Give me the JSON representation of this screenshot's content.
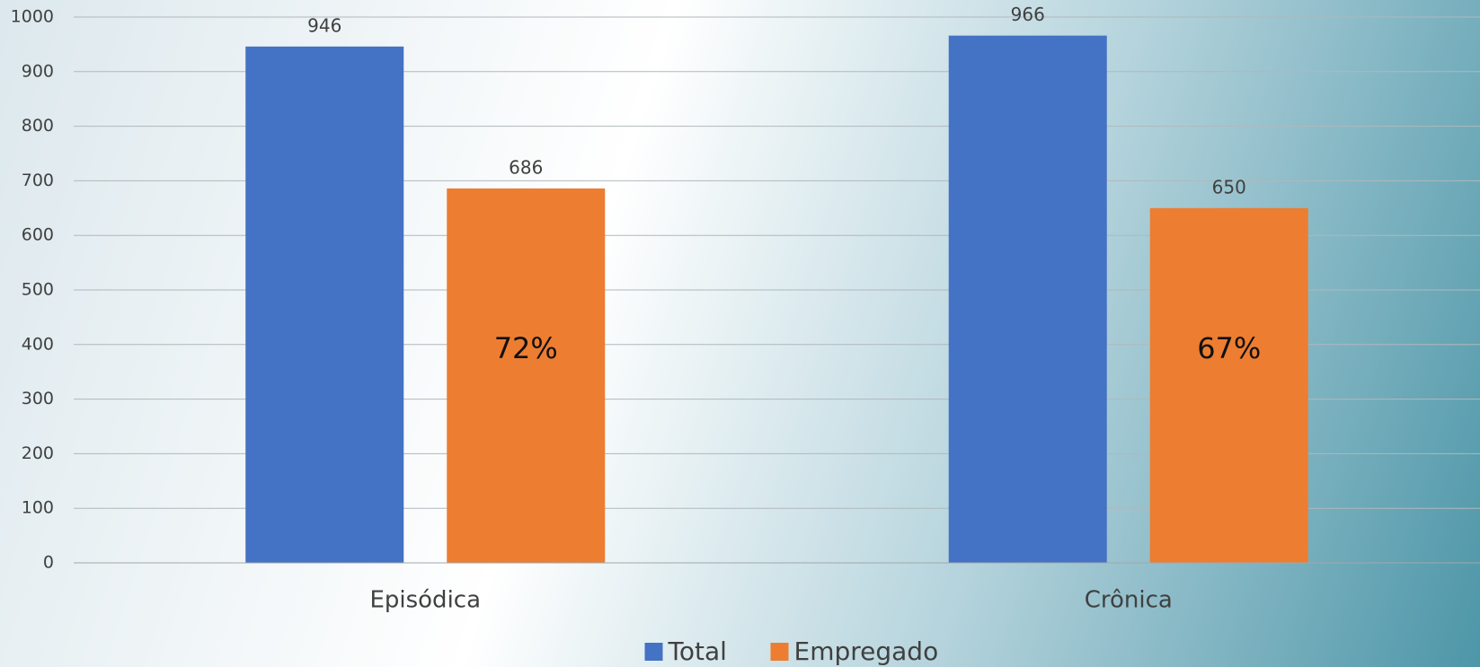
{
  "chart_data": {
    "type": "bar",
    "categories": [
      "Episódica",
      "Crônica"
    ],
    "series": [
      {
        "name": "Total",
        "color": "#4472c4",
        "values": [
          946,
          966
        ]
      },
      {
        "name": "Empregado",
        "color": "#ed7d31",
        "values": [
          686,
          650
        ]
      }
    ],
    "annotations": [
      "72%",
      "67%"
    ],
    "ylim": [
      0,
      1000
    ],
    "yticks": [
      0,
      100,
      200,
      300,
      400,
      500,
      600,
      700,
      800,
      900,
      1000
    ],
    "grid": true,
    "legend": "bottom"
  }
}
